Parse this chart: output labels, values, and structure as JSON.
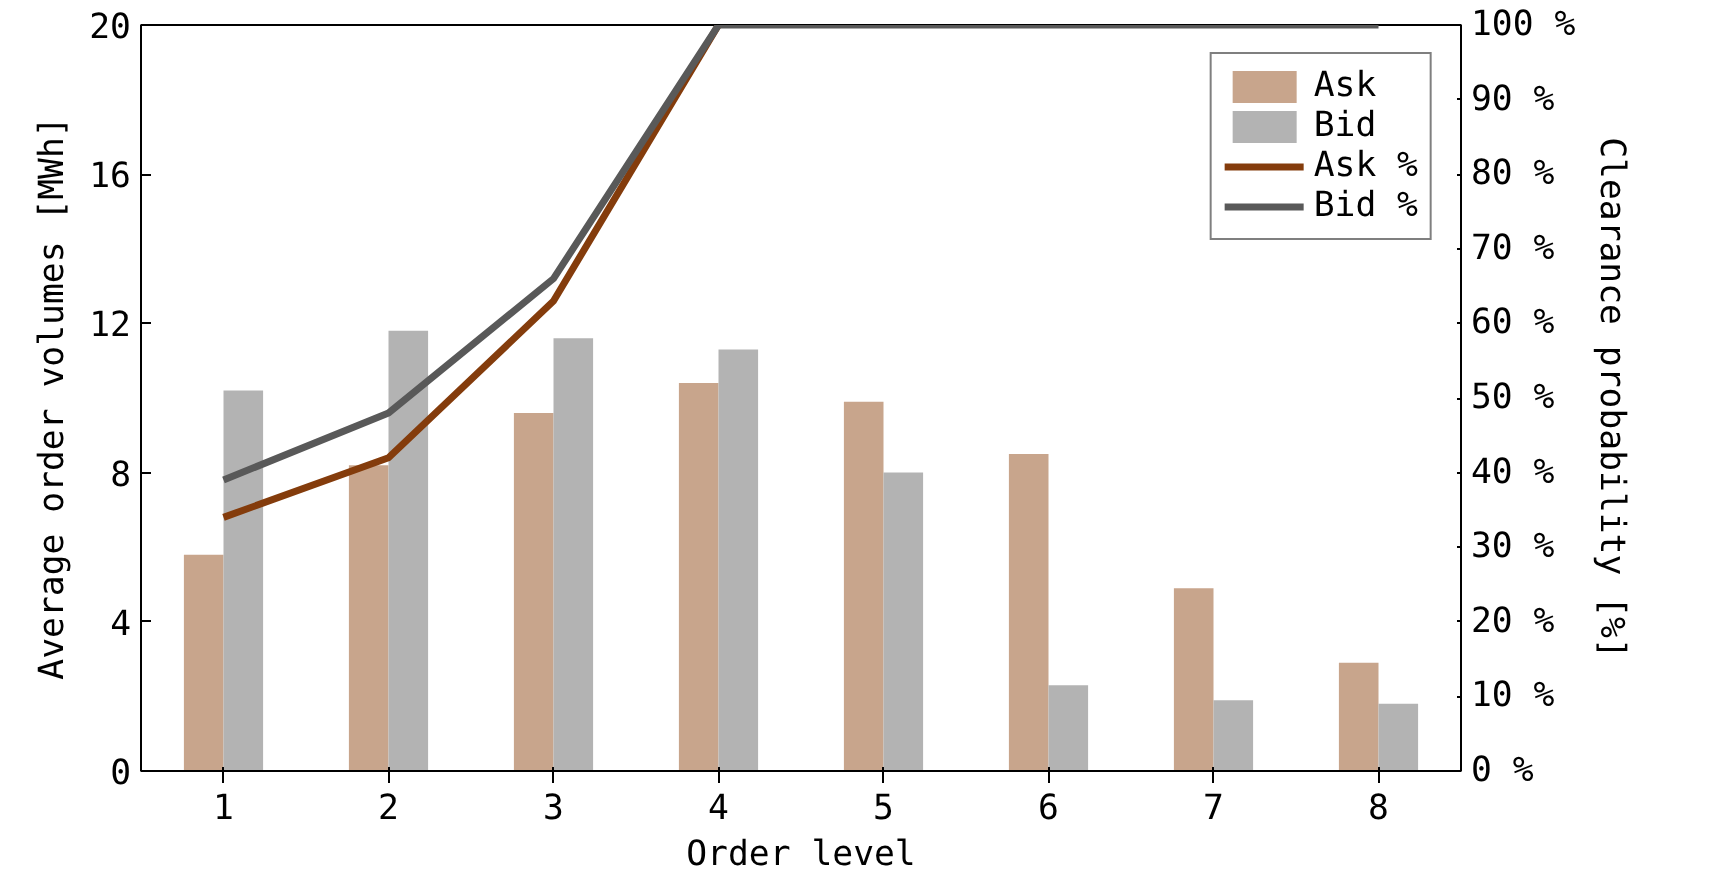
{
  "chart_data": {
    "type": "bar",
    "xlabel": "Order level",
    "ylabel": "Average order volumes [MWh]",
    "y2label": "Clearance probability [%]",
    "categories": [
      "1",
      "2",
      "3",
      "4",
      "5",
      "6",
      "7",
      "8"
    ],
    "ylim": [
      0,
      20
    ],
    "yticks": [
      0,
      4,
      8,
      12,
      16,
      20
    ],
    "y2lim": [
      0,
      100
    ],
    "y2ticks": [
      {
        "value": 0,
        "label": "0 %"
      },
      {
        "value": 10,
        "label": "10 %"
      },
      {
        "value": 20,
        "label": "20 %"
      },
      {
        "value": 30,
        "label": "30 %"
      },
      {
        "value": 40,
        "label": "40 %"
      },
      {
        "value": 50,
        "label": "50 %"
      },
      {
        "value": 60,
        "label": "60 %"
      },
      {
        "value": 70,
        "label": "70 %"
      },
      {
        "value": 80,
        "label": "80 %"
      },
      {
        "value": 90,
        "label": "90 %"
      },
      {
        "value": 100,
        "label": "100 %"
      }
    ],
    "series": [
      {
        "name": "Ask",
        "color": "#c8a58c",
        "values": [
          5.8,
          8.2,
          9.6,
          10.4,
          9.9,
          8.5,
          4.9,
          2.9
        ]
      },
      {
        "name": "Bid",
        "color": "#b3b3b3",
        "values": [
          10.2,
          11.8,
          11.6,
          11.3,
          8.0,
          2.3,
          1.9,
          1.8
        ]
      },
      {
        "name": "Ask %",
        "type": "line",
        "axis": "y2",
        "color": "#843c0c",
        "values": [
          34,
          42,
          63,
          100,
          null,
          null,
          null,
          null
        ]
      },
      {
        "name": "Bid %",
        "type": "line",
        "axis": "y2",
        "color": "#595959",
        "values": [
          39,
          48,
          66,
          100,
          100,
          100,
          100,
          100
        ]
      }
    ],
    "grid": false,
    "legend": "top right",
    "line_style": "solid"
  }
}
